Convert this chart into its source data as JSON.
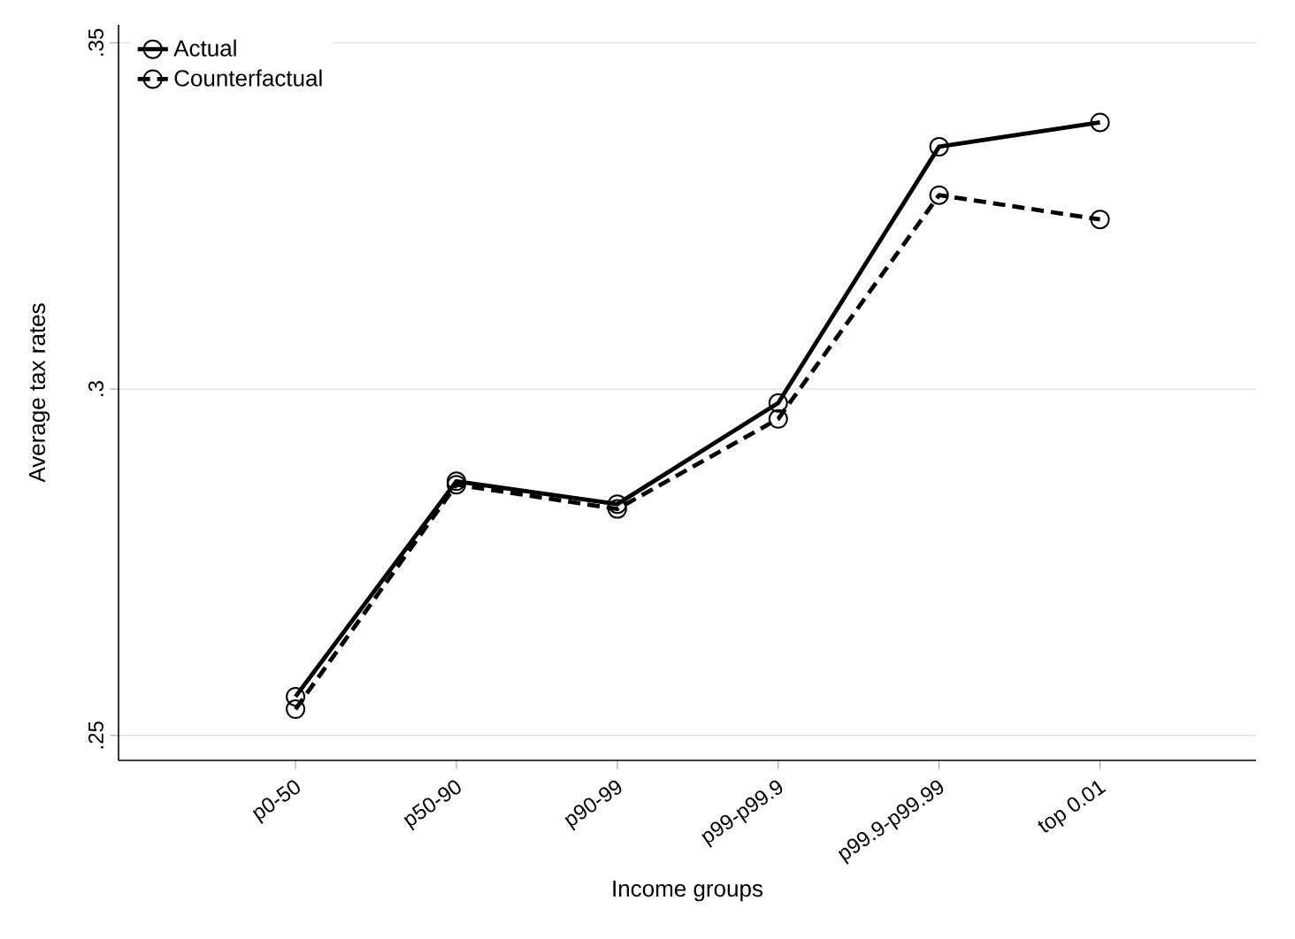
{
  "chart_data": {
    "type": "line",
    "xlabel": "Income groups",
    "ylabel": "Average tax rates",
    "categories": [
      "p0-50",
      "p50-90",
      "p90-99",
      "p99-p99.9",
      "p99.9-p99.99",
      "top 0.01"
    ],
    "series": [
      {
        "name": "Actual",
        "color": "#000000",
        "line_style": "solid",
        "values": [
          0.2556,
          0.2867,
          0.2834,
          0.298,
          0.335,
          0.3385
        ]
      },
      {
        "name": "Counterfactual",
        "color": "#000000",
        "line_style": "dashed",
        "values": [
          0.2538,
          0.2862,
          0.2827,
          0.2957,
          0.328,
          0.3245
        ]
      }
    ],
    "ylim": [
      0.2464,
      0.3526
    ],
    "yticks": [
      {
        "value": 0.25,
        "label": ".25"
      },
      {
        "value": 0.3,
        "label": ".3"
      },
      {
        "value": 0.35,
        "label": ".35"
      }
    ],
    "grid": "y",
    "legend": "top left",
    "marker": "circle"
  }
}
